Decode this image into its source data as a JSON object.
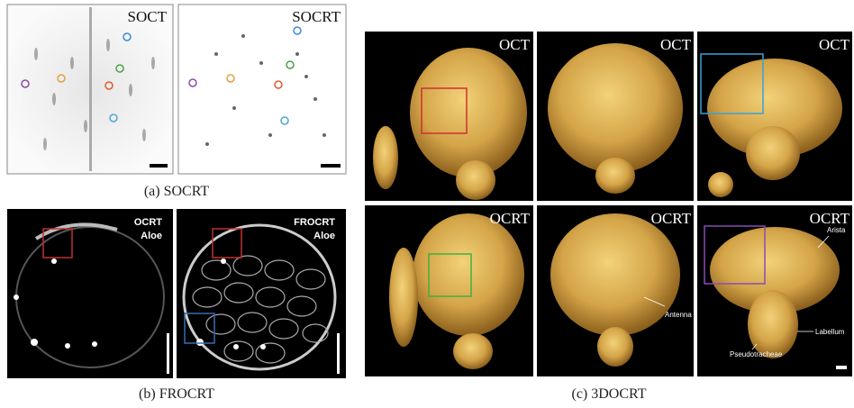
{
  "panels": [
    {
      "caption": "(a) SOCRT",
      "images": [
        {
          "label": "SOCT"
        },
        {
          "label": "SOCRT"
        }
      ]
    },
    {
      "caption": "(b) FROCRT",
      "images": [
        {
          "label": "OCRT",
          "sublabel": "Aloe"
        },
        {
          "label": "FROCRT",
          "sublabel": "Aloe"
        }
      ]
    },
    {
      "caption": "(c) 3DOCRT",
      "images": [
        {
          "label": "OCT"
        },
        {
          "label": "OCT"
        },
        {
          "label": "OCT"
        },
        {
          "label": "OCRT"
        },
        {
          "label": "OCRT"
        },
        {
          "label": "OCRT"
        }
      ],
      "annotations": [
        "Antenna",
        "Arista",
        "Labellum",
        "Pseudotracheae"
      ]
    }
  ]
}
